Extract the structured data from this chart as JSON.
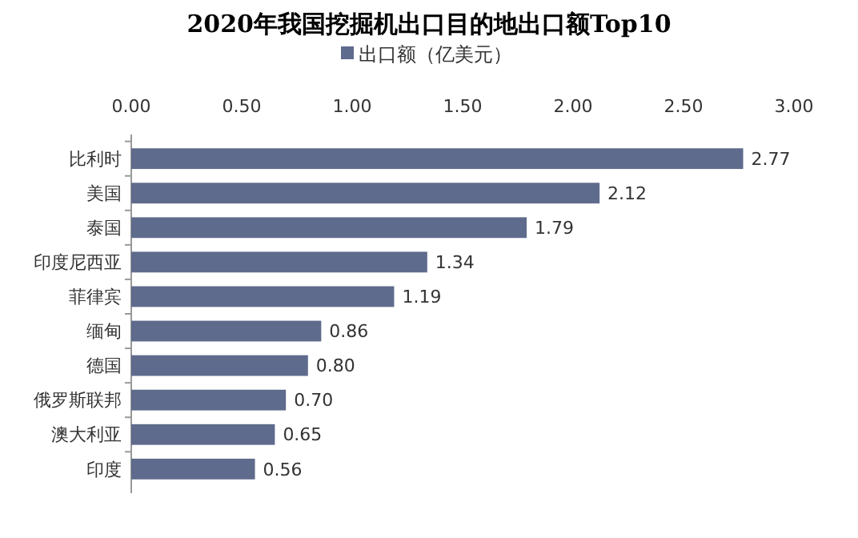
{
  "chart_data": {
    "type": "bar",
    "orientation": "horizontal",
    "title": "2020年我国挖掘机出口目的地出口额Top10",
    "categories": [
      "比利时",
      "美国",
      "泰国",
      "印度尼西亚",
      "菲律宾",
      "缅甸",
      "德国",
      "俄罗斯联邦",
      "澳大利亚",
      "印度"
    ],
    "series": [
      {
        "name": "出口额（亿美元）",
        "color": "#5f6b8c",
        "values": [
          2.77,
          2.12,
          1.79,
          1.34,
          1.19,
          0.86,
          0.8,
          0.7,
          0.65,
          0.56
        ],
        "value_labels": [
          "2.77",
          "2.12",
          "1.79",
          "1.34",
          "1.19",
          "0.86",
          "0.80",
          "0.70",
          "0.65",
          "0.56"
        ]
      }
    ],
    "xlim": [
      0,
      3
    ],
    "xticks": [
      {
        "value": 0,
        "label": "0.00"
      },
      {
        "value": 0.5,
        "label": "0.50"
      },
      {
        "value": 1,
        "label": "1.00"
      },
      {
        "value": 1.5,
        "label": "1.50"
      },
      {
        "value": 2,
        "label": "2.00"
      },
      {
        "value": 2.5,
        "label": "2.50"
      },
      {
        "value": 3,
        "label": "3.00"
      }
    ],
    "legend": "top",
    "grid": false
  }
}
